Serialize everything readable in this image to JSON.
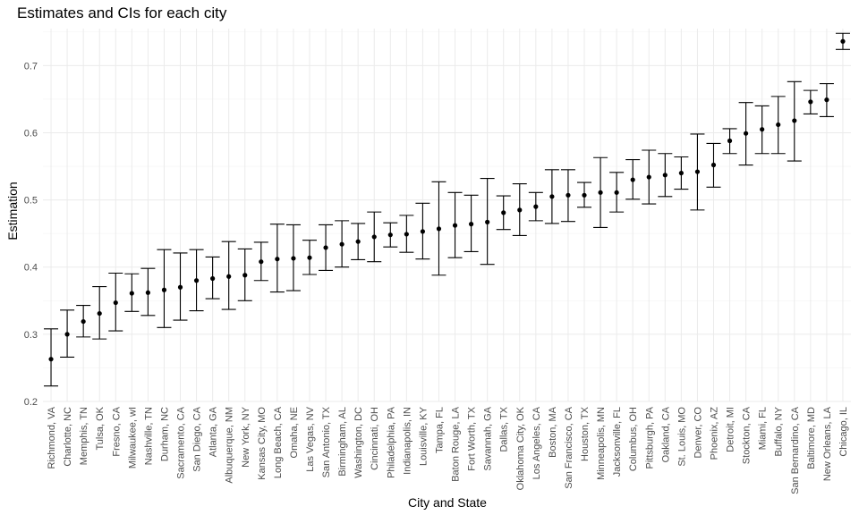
{
  "chart_data": {
    "type": "scatter",
    "title": "Estimates and CIs for each city",
    "xlabel": "City and State",
    "ylabel": "Estimation",
    "ylim": [
      0.2,
      0.755
    ],
    "yticks": [
      0.2,
      0.3,
      0.4,
      0.5,
      0.6,
      0.7
    ],
    "ytick_labels": [
      "0.2",
      "0.3",
      "0.4",
      "0.5",
      "0.6",
      "0.7"
    ],
    "grid": true,
    "legend": "none",
    "colors": {
      "point": "#000000",
      "errbar": "#000000",
      "grid": "#ebebeb",
      "background": "#ffffff"
    },
    "categories": [
      "Richmond, VA",
      "Charlotte, NC",
      "Memphis, TN",
      "Tulsa, OK",
      "Fresno, CA",
      "Milwaukee, wI",
      "Nashville, TN",
      "Durham, NC",
      "Sacramento, CA",
      "San Diego, CA",
      "Atlanta, GA",
      "Albuquerque, NM",
      "New York, NY",
      "Kansas City, MO",
      "Long Beach, CA",
      "Omaha, NE",
      "Las Vegas, NV",
      "San Antonio, TX",
      "Birmingham, AL",
      "Washington, DC",
      "Cincinnati, OH",
      "Philadelphia, PA",
      "Indianapolis, IN",
      "Louisville, KY",
      "Tampa, FL",
      "Baton Rouge, LA",
      "Fort Worth, TX",
      "Savannah, GA",
      "Dallas, TX",
      "Oklahoma City, OK",
      "Los Angeles, CA",
      "Boston, MA",
      "San Francisco, CA",
      "Houston, TX",
      "Minneapolis, MN",
      "Jacksonville, FL",
      "Columbus, OH",
      "Pittsburgh, PA",
      "Oakland, CA",
      "St. Louis, MO",
      "Denver, CO",
      "Phoenix, AZ",
      "Detroit, MI",
      "Stockton, CA",
      "Miami, FL",
      "Buffalo, NY",
      "San Bernardino, CA",
      "Baltimore, MD",
      "New Orleans, LA",
      "Chicago, IL"
    ],
    "estimate": [
      0.263,
      0.3,
      0.319,
      0.331,
      0.347,
      0.361,
      0.362,
      0.366,
      0.37,
      0.38,
      0.383,
      0.386,
      0.388,
      0.408,
      0.412,
      0.413,
      0.414,
      0.429,
      0.434,
      0.438,
      0.445,
      0.448,
      0.449,
      0.453,
      0.457,
      0.462,
      0.464,
      0.467,
      0.481,
      0.485,
      0.49,
      0.505,
      0.507,
      0.507,
      0.511,
      0.511,
      0.53,
      0.534,
      0.537,
      0.54,
      0.542,
      0.552,
      0.588,
      0.599,
      0.605,
      0.612,
      0.618,
      0.646,
      0.649,
      0.736
    ],
    "ci_lower": [
      0.223,
      0.266,
      0.296,
      0.293,
      0.305,
      0.334,
      0.328,
      0.31,
      0.321,
      0.335,
      0.353,
      0.337,
      0.35,
      0.38,
      0.363,
      0.365,
      0.389,
      0.395,
      0.4,
      0.411,
      0.408,
      0.43,
      0.422,
      0.412,
      0.388,
      0.414,
      0.423,
      0.404,
      0.456,
      0.447,
      0.469,
      0.465,
      0.468,
      0.489,
      0.459,
      0.482,
      0.501,
      0.494,
      0.505,
      0.516,
      0.485,
      0.519,
      0.569,
      0.552,
      0.569,
      0.569,
      0.558,
      0.628,
      0.624,
      0.724
    ],
    "ci_upper": [
      0.308,
      0.336,
      0.343,
      0.371,
      0.391,
      0.39,
      0.398,
      0.426,
      0.421,
      0.426,
      0.415,
      0.438,
      0.427,
      0.437,
      0.464,
      0.463,
      0.44,
      0.463,
      0.469,
      0.465,
      0.482,
      0.466,
      0.477,
      0.495,
      0.527,
      0.511,
      0.507,
      0.532,
      0.506,
      0.524,
      0.511,
      0.545,
      0.545,
      0.526,
      0.563,
      0.541,
      0.56,
      0.574,
      0.569,
      0.564,
      0.598,
      0.584,
      0.606,
      0.645,
      0.64,
      0.654,
      0.676,
      0.663,
      0.673,
      0.748
    ]
  }
}
